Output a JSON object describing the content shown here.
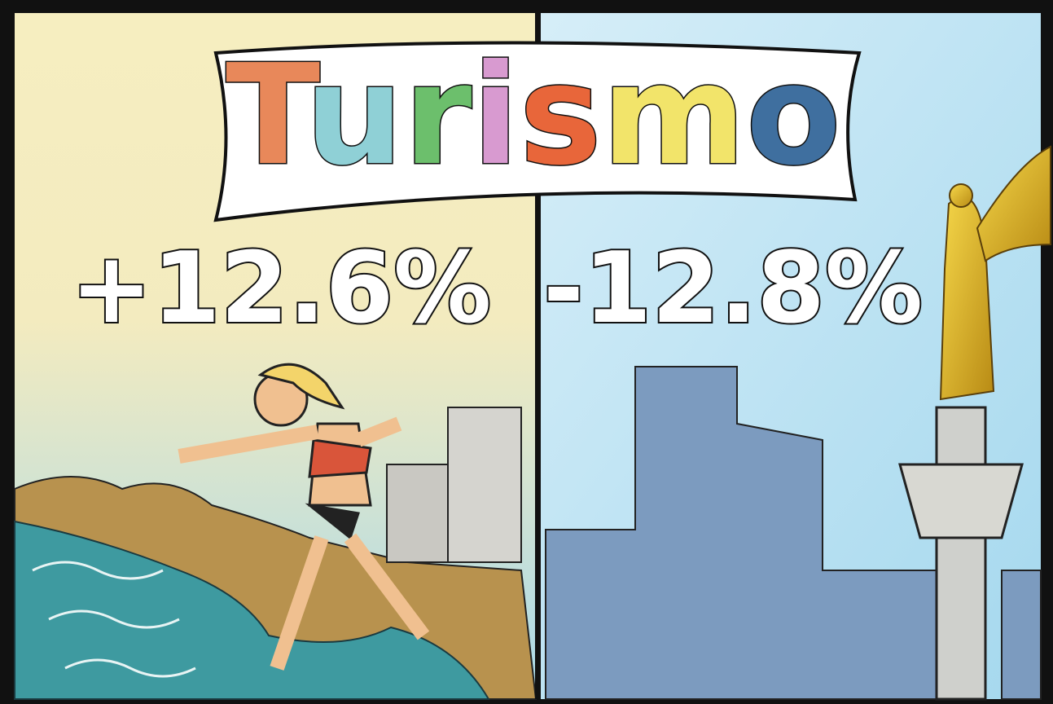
{
  "banner": {
    "title": "Turismo",
    "letter_colors": [
      "#e8885a",
      "#8fd0d6",
      "#6cbf6c",
      "#d89ad0",
      "#e8663a",
      "#f2e46a",
      "#3f6f9f"
    ]
  },
  "left_panel": {
    "change": "+12.6%"
  },
  "right_panel": {
    "change": "-12.8%"
  }
}
